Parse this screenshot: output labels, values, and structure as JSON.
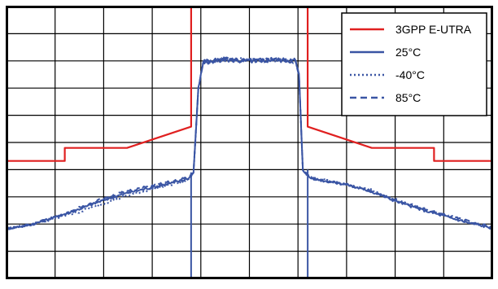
{
  "chart_data": {
    "type": "line",
    "title": "",
    "xlabel": "",
    "ylabel": "",
    "grid": true,
    "legend_position": "top-right",
    "x_range": [
      0,
      10
    ],
    "y_range": [
      0,
      10
    ],
    "x_divisions": 10,
    "y_divisions": 10,
    "series": [
      {
        "name": "3GPP E-UTRA",
        "color": "#e02020",
        "style": "solid",
        "points": [
          [
            0,
            4.32
          ],
          [
            1.2,
            4.32
          ],
          [
            1.2,
            4.8
          ],
          [
            2.48,
            4.8
          ],
          [
            3.8,
            5.58
          ],
          [
            3.8,
            10.3
          ],
          null,
          [
            6.2,
            10.3
          ],
          [
            6.2,
            5.58
          ],
          [
            7.52,
            4.8
          ],
          [
            8.8,
            4.8
          ],
          [
            8.8,
            4.32
          ],
          [
            10,
            4.32
          ]
        ]
      },
      {
        "name": "25°C",
        "color": "#3a55a4",
        "style": "solid",
        "points": [
          [
            0,
            1.83
          ],
          [
            0.5,
            1.98
          ],
          [
            1.0,
            2.25
          ],
          [
            1.5,
            2.55
          ],
          [
            2.0,
            2.88
          ],
          [
            2.5,
            3.15
          ],
          [
            3.0,
            3.35
          ],
          [
            3.5,
            3.55
          ],
          [
            3.75,
            3.68
          ],
          [
            3.85,
            3.9
          ],
          [
            3.95,
            7.0
          ],
          [
            4.05,
            7.95
          ],
          [
            4.5,
            8.05
          ],
          [
            5.0,
            8.0
          ],
          [
            5.5,
            8.05
          ],
          [
            5.95,
            8.0
          ],
          [
            6.02,
            7.5
          ],
          [
            6.1,
            4.0
          ],
          [
            6.25,
            3.7
          ],
          [
            6.5,
            3.6
          ],
          [
            7.0,
            3.45
          ],
          [
            7.5,
            3.2
          ],
          [
            8.0,
            2.85
          ],
          [
            8.5,
            2.55
          ],
          [
            9.0,
            2.3
          ],
          [
            9.5,
            2.05
          ],
          [
            10,
            1.85
          ]
        ]
      },
      {
        "name": "-40°C",
        "color": "#3a55a4",
        "style": "dotted",
        "points": [
          [
            0,
            1.83
          ],
          [
            0.5,
            1.98
          ],
          [
            1.0,
            2.2
          ],
          [
            1.5,
            2.45
          ],
          [
            2.0,
            2.75
          ],
          [
            2.5,
            3.05
          ],
          [
            3.0,
            3.28
          ],
          [
            3.5,
            3.5
          ],
          [
            3.75,
            3.65
          ],
          [
            3.85,
            3.9
          ],
          [
            3.95,
            7.0
          ],
          [
            4.05,
            7.95
          ],
          [
            4.5,
            8.05
          ],
          [
            5.0,
            8.0
          ],
          [
            5.5,
            8.05
          ],
          [
            5.95,
            8.0
          ],
          [
            6.02,
            7.5
          ],
          [
            6.1,
            4.0
          ],
          [
            6.25,
            3.7
          ],
          [
            6.5,
            3.62
          ],
          [
            7.0,
            3.48
          ],
          [
            7.5,
            3.25
          ],
          [
            8.0,
            2.9
          ],
          [
            8.5,
            2.6
          ],
          [
            9.0,
            2.32
          ],
          [
            9.5,
            2.07
          ],
          [
            10,
            1.85
          ]
        ]
      },
      {
        "name": "85°C",
        "color": "#3a55a4",
        "style": "dashed",
        "points": [
          [
            0,
            1.83
          ],
          [
            0.5,
            1.98
          ],
          [
            1.0,
            2.25
          ],
          [
            1.5,
            2.6
          ],
          [
            2.0,
            2.95
          ],
          [
            2.5,
            3.22
          ],
          [
            3.0,
            3.42
          ],
          [
            3.5,
            3.6
          ],
          [
            3.75,
            3.72
          ],
          [
            3.85,
            3.92
          ],
          [
            3.95,
            7.0
          ],
          [
            4.05,
            7.95
          ],
          [
            4.5,
            8.05
          ],
          [
            5.0,
            8.0
          ],
          [
            5.5,
            8.05
          ],
          [
            5.95,
            8.0
          ],
          [
            6.02,
            7.5
          ],
          [
            6.1,
            4.0
          ],
          [
            6.25,
            3.7
          ],
          [
            6.5,
            3.6
          ],
          [
            7.0,
            3.45
          ],
          [
            7.5,
            3.22
          ],
          [
            8.0,
            2.9
          ],
          [
            8.5,
            2.6
          ],
          [
            9.0,
            2.35
          ],
          [
            9.5,
            2.1
          ],
          [
            10,
            1.9
          ]
        ]
      }
    ],
    "vertical_lines": [
      {
        "x": 3.8,
        "y_from": 0,
        "y_to": 3.9,
        "color": "#3a55a4"
      },
      {
        "x": 6.2,
        "y_from": 0,
        "y_to": 4.0,
        "color": "#3a55a4"
      }
    ]
  },
  "legend": {
    "items": [
      {
        "label": "3GPP E-UTRA",
        "color": "#e02020",
        "style": "solid"
      },
      {
        "label": "25°C",
        "color": "#3a55a4",
        "style": "solid"
      },
      {
        "label": "-40°C",
        "color": "#3a55a4",
        "style": "dotted"
      },
      {
        "label": "85°C",
        "color": "#3a55a4",
        "style": "dashed"
      }
    ]
  }
}
